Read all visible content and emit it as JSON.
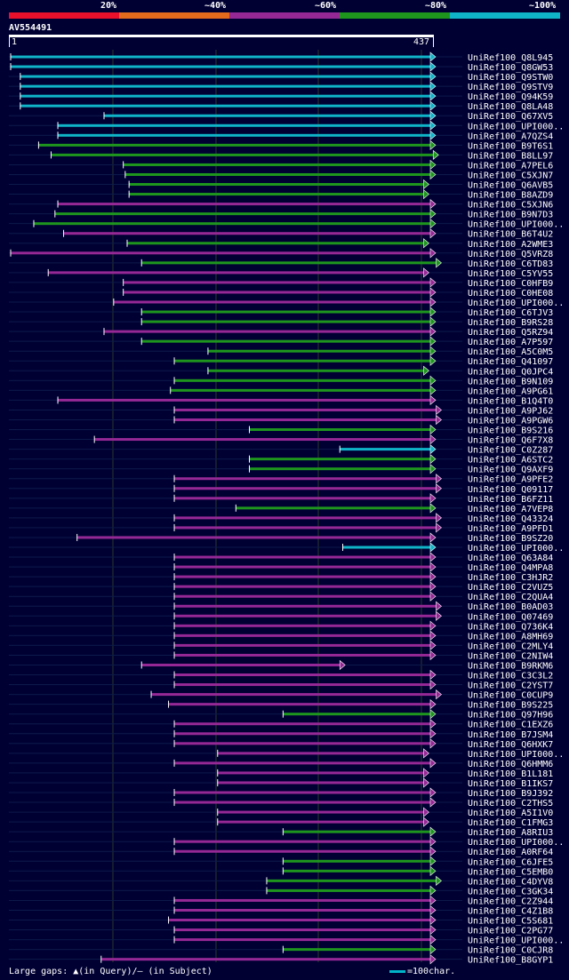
{
  "legend": {
    "colors": [
      "#e8102a",
      "#e46a1c",
      "#962896",
      "#1e961e",
      "#0fb4c8"
    ],
    "labels": [
      "20%",
      "~40%",
      "~60%",
      "~80%",
      "~100%"
    ]
  },
  "query": {
    "id": "AV554491",
    "start": "1",
    "end": "437",
    "length": 437
  },
  "palette": {
    "cyan": "#0fb4c8",
    "green": "#1e961e",
    "magenta": "#962896",
    "orange": "#e46a1c",
    "red": "#e8102a"
  },
  "hits": [
    {
      "name": "UniRef100_Q8L945",
      "s": 1,
      "e": 437,
      "c": "cyan"
    },
    {
      "name": "UniRef100_Q8GW53",
      "s": 1,
      "e": 437,
      "c": "cyan"
    },
    {
      "name": "UniRef100_Q9STW0",
      "s": 11,
      "e": 437,
      "c": "cyan"
    },
    {
      "name": "UniRef100_Q9STV9",
      "s": 11,
      "e": 437,
      "c": "cyan"
    },
    {
      "name": "UniRef100_Q94K59",
      "s": 11,
      "e": 437,
      "c": "cyan"
    },
    {
      "name": "UniRef100_Q8LA48",
      "s": 11,
      "e": 437,
      "c": "cyan"
    },
    {
      "name": "UniRef100_Q67XV5",
      "s": 98,
      "e": 437,
      "c": "cyan"
    },
    {
      "name": "UniRef100_UPI000..",
      "s": 50,
      "e": 437,
      "c": "cyan"
    },
    {
      "name": "UniRef100_A7QZS4",
      "s": 50,
      "e": 437,
      "c": "cyan"
    },
    {
      "name": "UniRef100_B9T6S1",
      "s": 30,
      "e": 437,
      "c": "green"
    },
    {
      "name": "UniRef100_B8LL97",
      "s": 43,
      "e": 440,
      "c": "green"
    },
    {
      "name": "UniRef100_A7PEL6",
      "s": 118,
      "e": 437,
      "c": "green"
    },
    {
      "name": "UniRef100_C5XJN7",
      "s": 120,
      "e": 437,
      "c": "green"
    },
    {
      "name": "UniRef100_Q6AVB5",
      "s": 124,
      "e": 430,
      "c": "green"
    },
    {
      "name": "UniRef100_B8AZD9",
      "s": 124,
      "e": 430,
      "c": "green"
    },
    {
      "name": "UniRef100_C5XJN6",
      "s": 50,
      "e": 437,
      "c": "magenta"
    },
    {
      "name": "UniRef100_B9N7D3",
      "s": 47,
      "e": 437,
      "c": "green"
    },
    {
      "name": "UniRef100_UPI000..",
      "s": 25,
      "e": 437,
      "c": "green"
    },
    {
      "name": "UniRef100_B6T4U2",
      "s": 56,
      "e": 437,
      "c": "magenta"
    },
    {
      "name": "UniRef100_A2WME3",
      "s": 122,
      "e": 430,
      "c": "green"
    },
    {
      "name": "UniRef100_Q5VRZ8",
      "s": 1,
      "e": 437,
      "c": "magenta"
    },
    {
      "name": "UniRef100_C6TD83",
      "s": 137,
      "e": 443,
      "c": "green"
    },
    {
      "name": "UniRef100_C5YV55",
      "s": 40,
      "e": 430,
      "c": "magenta"
    },
    {
      "name": "UniRef100_C0HFB9",
      "s": 118,
      "e": 437,
      "c": "magenta"
    },
    {
      "name": "UniRef100_C0HE08",
      "s": 118,
      "e": 437,
      "c": "magenta"
    },
    {
      "name": "UniRef100_UPI000..",
      "s": 108,
      "e": 437,
      "c": "magenta"
    },
    {
      "name": "UniRef100_C6TJV3",
      "s": 137,
      "e": 437,
      "c": "green"
    },
    {
      "name": "UniRef100_B9RS28",
      "s": 137,
      "e": 437,
      "c": "green"
    },
    {
      "name": "UniRef100_Q5RZ94",
      "s": 98,
      "e": 437,
      "c": "magenta"
    },
    {
      "name": "UniRef100_A7P597",
      "s": 137,
      "e": 437,
      "c": "green"
    },
    {
      "name": "UniRef100_A5C0M5",
      "s": 206,
      "e": 437,
      "c": "green"
    },
    {
      "name": "UniRef100_Q41097",
      "s": 171,
      "e": 437,
      "c": "green"
    },
    {
      "name": "UniRef100_Q0JPC4",
      "s": 206,
      "e": 430,
      "c": "green"
    },
    {
      "name": "UniRef100_B9N109",
      "s": 171,
      "e": 437,
      "c": "green"
    },
    {
      "name": "UniRef100_A9PG61",
      "s": 167,
      "e": 437,
      "c": "green"
    },
    {
      "name": "UniRef100_B1Q4T0",
      "s": 50,
      "e": 437,
      "c": "magenta"
    },
    {
      "name": "UniRef100_A9PJ62",
      "s": 171,
      "e": 443,
      "c": "magenta"
    },
    {
      "name": "UniRef100_A9PGW6",
      "s": 171,
      "e": 443,
      "c": "magenta"
    },
    {
      "name": "UniRef100_B9S216",
      "s": 249,
      "e": 437,
      "c": "green"
    },
    {
      "name": "UniRef100_Q6F7X8",
      "s": 88,
      "e": 437,
      "c": "magenta"
    },
    {
      "name": "UniRef100_C0Z287",
      "s": 343,
      "e": 437,
      "c": "cyan"
    },
    {
      "name": "UniRef100_A6STC2",
      "s": 249,
      "e": 437,
      "c": "green"
    },
    {
      "name": "UniRef100_Q9AXF9",
      "s": 249,
      "e": 437,
      "c": "green"
    },
    {
      "name": "UniRef100_A9PFE2",
      "s": 171,
      "e": 443,
      "c": "magenta"
    },
    {
      "name": "UniRef100_Q09117",
      "s": 171,
      "e": 443,
      "c": "magenta"
    },
    {
      "name": "UniRef100_B6FZ11",
      "s": 171,
      "e": 437,
      "c": "magenta"
    },
    {
      "name": "UniRef100_A7VEP8",
      "s": 235,
      "e": 437,
      "c": "green"
    },
    {
      "name": "UniRef100_Q43324",
      "s": 171,
      "e": 443,
      "c": "magenta"
    },
    {
      "name": "UniRef100_A9PFD1",
      "s": 171,
      "e": 443,
      "c": "magenta"
    },
    {
      "name": "UniRef100_B9SZ20",
      "s": 70,
      "e": 437,
      "c": "magenta"
    },
    {
      "name": "UniRef100_UPI000..",
      "s": 346,
      "e": 437,
      "c": "cyan"
    },
    {
      "name": "UniRef100_Q63A84",
      "s": 171,
      "e": 437,
      "c": "magenta"
    },
    {
      "name": "UniRef100_Q4MPA8",
      "s": 171,
      "e": 437,
      "c": "magenta"
    },
    {
      "name": "UniRef100_C3HJR2",
      "s": 171,
      "e": 437,
      "c": "magenta"
    },
    {
      "name": "UniRef100_C2VUZ5",
      "s": 171,
      "e": 437,
      "c": "magenta"
    },
    {
      "name": "UniRef100_C2QUA4",
      "s": 171,
      "e": 437,
      "c": "magenta"
    },
    {
      "name": "UniRef100_B0AD03",
      "s": 171,
      "e": 443,
      "c": "magenta"
    },
    {
      "name": "UniRef100_Q07469",
      "s": 171,
      "e": 443,
      "c": "magenta"
    },
    {
      "name": "UniRef100_Q736K4",
      "s": 171,
      "e": 437,
      "c": "magenta"
    },
    {
      "name": "UniRef100_A8MH69",
      "s": 171,
      "e": 437,
      "c": "magenta"
    },
    {
      "name": "UniRef100_C2MLY4",
      "s": 171,
      "e": 437,
      "c": "magenta"
    },
    {
      "name": "UniRef100_C2NIW4",
      "s": 171,
      "e": 437,
      "c": "magenta"
    },
    {
      "name": "UniRef100_B9RKM6",
      "s": 137,
      "e": 343,
      "c": "magenta"
    },
    {
      "name": "UniRef100_C3C3L2",
      "s": 171,
      "e": 437,
      "c": "magenta"
    },
    {
      "name": "UniRef100_C2YST7",
      "s": 171,
      "e": 437,
      "c": "magenta"
    },
    {
      "name": "UniRef100_C0CUP9",
      "s": 147,
      "e": 443,
      "c": "magenta"
    },
    {
      "name": "UniRef100_B9S225",
      "s": 165,
      "e": 437,
      "c": "magenta"
    },
    {
      "name": "UniRef100_Q97H96",
      "s": 284,
      "e": 437,
      "c": "green"
    },
    {
      "name": "UniRef100_C1EXZ6",
      "s": 171,
      "e": 437,
      "c": "magenta"
    },
    {
      "name": "UniRef100_B7JSM4",
      "s": 171,
      "e": 437,
      "c": "magenta"
    },
    {
      "name": "UniRef100_Q6HXK7",
      "s": 171,
      "e": 437,
      "c": "magenta"
    },
    {
      "name": "UniRef100_UPI000..",
      "s": 216,
      "e": 430,
      "c": "magenta"
    },
    {
      "name": "UniRef100_Q6HMM6",
      "s": 171,
      "e": 437,
      "c": "magenta"
    },
    {
      "name": "UniRef100_B1L181",
      "s": 216,
      "e": 430,
      "c": "magenta"
    },
    {
      "name": "UniRef100_B1IKS7",
      "s": 216,
      "e": 430,
      "c": "magenta"
    },
    {
      "name": "UniRef100_B9J392",
      "s": 171,
      "e": 437,
      "c": "magenta"
    },
    {
      "name": "UniRef100_C2THS5",
      "s": 171,
      "e": 437,
      "c": "magenta"
    },
    {
      "name": "UniRef100_A5I1V0",
      "s": 216,
      "e": 430,
      "c": "magenta"
    },
    {
      "name": "UniRef100_C1FMG3",
      "s": 216,
      "e": 430,
      "c": "magenta"
    },
    {
      "name": "UniRef100_A8RIU3",
      "s": 284,
      "e": 437,
      "c": "green"
    },
    {
      "name": "UniRef100_UPI000..",
      "s": 171,
      "e": 437,
      "c": "magenta"
    },
    {
      "name": "UniRef100_A0RF64",
      "s": 171,
      "e": 437,
      "c": "magenta"
    },
    {
      "name": "UniRef100_C6JFE5",
      "s": 284,
      "e": 437,
      "c": "green"
    },
    {
      "name": "UniRef100_C5EMB0",
      "s": 284,
      "e": 437,
      "c": "green"
    },
    {
      "name": "UniRef100_C4DYV8",
      "s": 267,
      "e": 443,
      "c": "green"
    },
    {
      "name": "UniRef100_C3GK34",
      "s": 267,
      "e": 437,
      "c": "green"
    },
    {
      "name": "UniRef100_C2Z944",
      "s": 171,
      "e": 437,
      "c": "magenta"
    },
    {
      "name": "UniRef100_C4Z1B8",
      "s": 171,
      "e": 437,
      "c": "magenta"
    },
    {
      "name": "UniRef100_C5S681",
      "s": 165,
      "e": 437,
      "c": "magenta"
    },
    {
      "name": "UniRef100_C2PG77",
      "s": 171,
      "e": 437,
      "c": "magenta"
    },
    {
      "name": "UniRef100_UPI000..",
      "s": 171,
      "e": 437,
      "c": "magenta"
    },
    {
      "name": "UniRef100_C0CJR8",
      "s": 284,
      "e": 437,
      "c": "green"
    },
    {
      "name": "UniRef100_B8GYP1",
      "s": 95,
      "e": 437,
      "c": "magenta"
    }
  ],
  "footer": {
    "text": "Large gaps: ▲(in Query)/– (in Subject)",
    "scale": "=100char."
  }
}
